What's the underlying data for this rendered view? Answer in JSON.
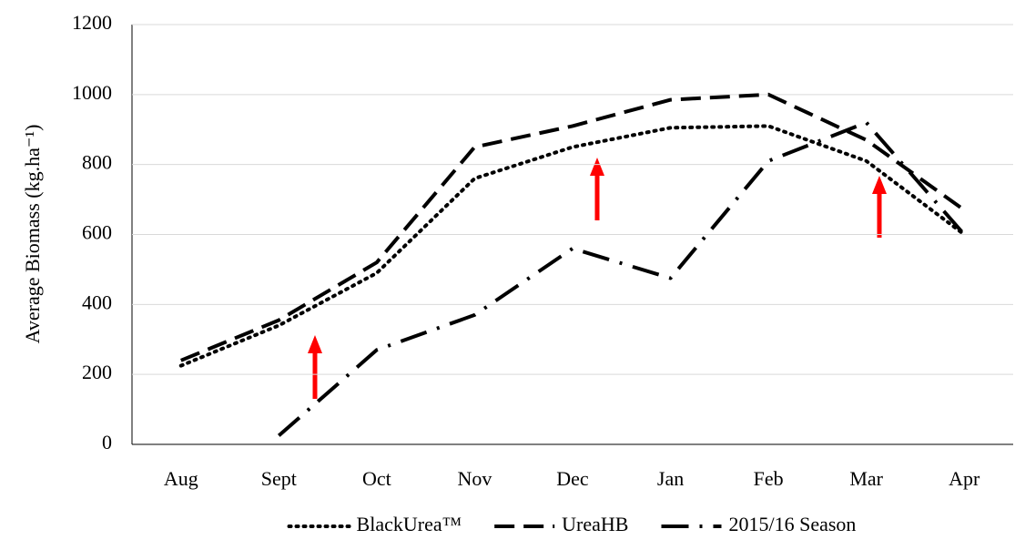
{
  "chart_data": {
    "type": "line",
    "y_label": "Average Biomass (kg.ha⁻¹)",
    "categories": [
      "Aug",
      "Sept",
      "Oct",
      "Nov",
      "Dec",
      "Jan",
      "Feb",
      "Mar",
      "Apr"
    ],
    "series": [
      {
        "name": "BlackUrea™",
        "color": "#000000",
        "dash": "dotted",
        "values": [
          225,
          340,
          490,
          760,
          850,
          905,
          910,
          810,
          600
        ]
      },
      {
        "name": "UreaHB",
        "color": "#000000",
        "dash": "dashed",
        "values": [
          240,
          355,
          520,
          850,
          910,
          985,
          1000,
          870,
          670
        ]
      },
      {
        "name": "2015/16 Season",
        "color": "#000000",
        "dash": "dash-dot",
        "values": [
          null,
          25,
          270,
          370,
          560,
          475,
          810,
          920,
          600
        ]
      }
    ],
    "ylim": [
      0,
      1200
    ],
    "yticks": [
      0,
      200,
      400,
      600,
      800,
      1000,
      1200
    ],
    "grid": true,
    "legend": "bottom"
  }
}
